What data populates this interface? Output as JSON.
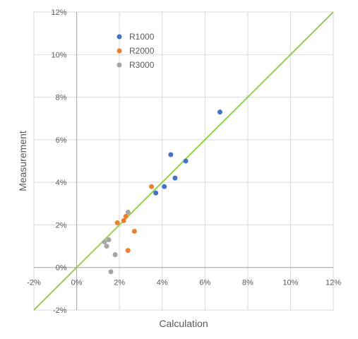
{
  "chart_data": {
    "type": "scatter",
    "xlabel": "Calculation",
    "ylabel": "Measurement",
    "xlim": [
      -0.02,
      0.12
    ],
    "ylim": [
      -0.02,
      0.12
    ],
    "x_ticks": [
      "-2%",
      "0%",
      "2%",
      "4%",
      "6%",
      "8%",
      "10%",
      "12%"
    ],
    "y_ticks": [
      "-2%",
      "0%",
      "2%",
      "4%",
      "6%",
      "8%",
      "10%",
      "12%"
    ],
    "grid": true,
    "legend_position": "top-left",
    "reference_line": {
      "label": "",
      "from": [
        -0.02,
        -0.02
      ],
      "to": [
        0.12,
        0.12
      ],
      "color": "#92d050"
    },
    "series": [
      {
        "name": "R1000",
        "color": "#4472c4",
        "points": [
          {
            "x": 0.067,
            "y": 0.073
          },
          {
            "x": 0.044,
            "y": 0.053
          },
          {
            "x": 0.051,
            "y": 0.05
          },
          {
            "x": 0.046,
            "y": 0.042
          },
          {
            "x": 0.041,
            "y": 0.038
          },
          {
            "x": 0.037,
            "y": 0.035
          }
        ]
      },
      {
        "name": "R2000",
        "color": "#ed7d31",
        "points": [
          {
            "x": 0.035,
            "y": 0.038
          },
          {
            "x": 0.023,
            "y": 0.024
          },
          {
            "x": 0.022,
            "y": 0.022
          },
          {
            "x": 0.019,
            "y": 0.021
          },
          {
            "x": 0.027,
            "y": 0.017
          },
          {
            "x": 0.024,
            "y": 0.008
          }
        ]
      },
      {
        "name": "R3000",
        "color": "#a5a5a5",
        "points": [
          {
            "x": 0.024,
            "y": 0.026
          },
          {
            "x": 0.015,
            "y": 0.013
          },
          {
            "x": 0.013,
            "y": 0.012
          },
          {
            "x": 0.014,
            "y": 0.01
          },
          {
            "x": 0.018,
            "y": 0.006
          },
          {
            "x": 0.016,
            "y": -0.002
          }
        ]
      }
    ]
  }
}
